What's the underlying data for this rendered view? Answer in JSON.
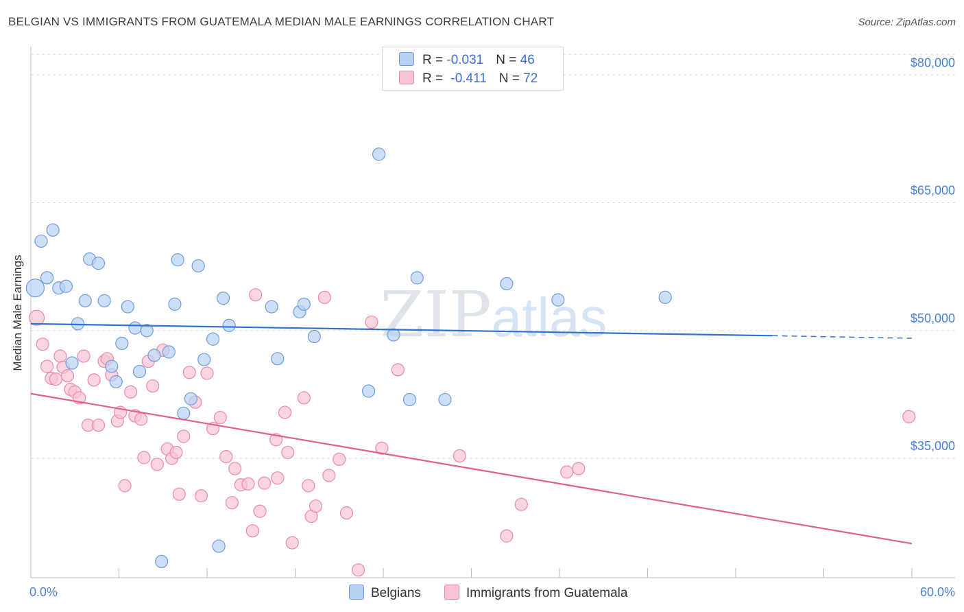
{
  "title": "BELGIAN VS IMMIGRANTS FROM GUATEMALA MEDIAN MALE EARNINGS CORRELATION CHART",
  "source": "Source: ZipAtlas.com",
  "watermark": "ZIPatlas",
  "legend": {
    "rows": [
      {
        "r_label": "R = ",
        "r_value": "-0.031",
        "n_label": "N = ",
        "n_value": "46"
      },
      {
        "r_label": "R = ",
        "r_value": "-0.411",
        "n_label": "N = ",
        "n_value": "72"
      }
    ]
  },
  "bottom_legend": [
    "Belgians",
    "Immigrants from Guatemala"
  ],
  "colors": {
    "blue_fill": "#b8d1f3",
    "blue_stroke": "#6f9bdc",
    "blue_line": "#2f72d0",
    "pink_fill": "#f7c3d3",
    "pink_stroke": "#e88aa8",
    "pink_line": "#e0608d",
    "tick_text": "#4a7fd4"
  },
  "chart_data": {
    "type": "scatter",
    "title": "BELGIAN VS IMMIGRANTS FROM GUATEMALA MEDIAN MALE EARNINGS CORRELATION CHART",
    "xlabel": "",
    "ylabel": "Median Male Earnings",
    "xlim": [
      0,
      60
    ],
    "ylim": [
      21000,
      83000
    ],
    "x_tick_labels": [
      "0.0%",
      "60.0%"
    ],
    "y_ticks": [
      35000,
      50000,
      65000,
      80000
    ],
    "y_tick_labels": [
      "$35,000",
      "$50,000",
      "$65,000",
      "$80,000"
    ],
    "grid": true,
    "legend_position": "top-center",
    "series": [
      {
        "name": "Belgians",
        "R": -0.031,
        "N": 46,
        "trend": {
          "x": [
            0,
            50.5
          ],
          "y": [
            50800,
            49400
          ],
          "dashed_to": [
            60,
            49100
          ]
        },
        "points": [
          [
            0.3,
            55000
          ],
          [
            0.7,
            60500
          ],
          [
            1.1,
            56200
          ],
          [
            1.5,
            61800
          ],
          [
            1.9,
            55000
          ],
          [
            2.4,
            55200
          ],
          [
            2.8,
            46200
          ],
          [
            3.2,
            50800
          ],
          [
            3.7,
            53500
          ],
          [
            4.0,
            58400
          ],
          [
            4.6,
            57900
          ],
          [
            5.0,
            53500
          ],
          [
            5.5,
            45800
          ],
          [
            5.8,
            44000
          ],
          [
            6.2,
            48500
          ],
          [
            6.6,
            52800
          ],
          [
            7.1,
            50300
          ],
          [
            7.4,
            45200
          ],
          [
            7.9,
            50000
          ],
          [
            8.4,
            47100
          ],
          [
            8.9,
            22900
          ],
          [
            9.4,
            47500
          ],
          [
            9.8,
            53100
          ],
          [
            10.0,
            58300
          ],
          [
            10.4,
            40300
          ],
          [
            10.9,
            42000
          ],
          [
            11.4,
            57600
          ],
          [
            11.8,
            46600
          ],
          [
            12.4,
            49000
          ],
          [
            12.8,
            24700
          ],
          [
            13.1,
            53800
          ],
          [
            13.5,
            50600
          ],
          [
            16.4,
            52800
          ],
          [
            16.8,
            46700
          ],
          [
            18.3,
            52200
          ],
          [
            18.6,
            53100
          ],
          [
            19.3,
            49300
          ],
          [
            23.0,
            42900
          ],
          [
            23.7,
            70700
          ],
          [
            24.7,
            49500
          ],
          [
            25.8,
            41900
          ],
          [
            26.3,
            56200
          ],
          [
            28.2,
            41900
          ],
          [
            32.4,
            55500
          ],
          [
            35.9,
            53600
          ],
          [
            43.2,
            53900
          ]
        ]
      },
      {
        "name": "Immigrants from Guatemala",
        "R": -0.411,
        "N": 72,
        "trend": {
          "x": [
            0,
            60
          ],
          "y": [
            42600,
            25000
          ]
        },
        "points": [
          [
            0.4,
            51500
          ],
          [
            0.8,
            48400
          ],
          [
            1.1,
            45800
          ],
          [
            1.4,
            44400
          ],
          [
            1.7,
            44300
          ],
          [
            2.0,
            47000
          ],
          [
            2.2,
            45700
          ],
          [
            2.5,
            44700
          ],
          [
            2.7,
            43100
          ],
          [
            3.0,
            42800
          ],
          [
            3.3,
            42100
          ],
          [
            3.6,
            47000
          ],
          [
            3.9,
            38900
          ],
          [
            4.3,
            44200
          ],
          [
            4.6,
            38900
          ],
          [
            5.0,
            46400
          ],
          [
            5.2,
            46700
          ],
          [
            5.5,
            44800
          ],
          [
            5.9,
            39400
          ],
          [
            6.1,
            40400
          ],
          [
            6.4,
            31800
          ],
          [
            6.8,
            42800
          ],
          [
            7.1,
            40000
          ],
          [
            7.5,
            39600
          ],
          [
            7.7,
            35100
          ],
          [
            8.0,
            46400
          ],
          [
            8.3,
            43500
          ],
          [
            8.6,
            34300
          ],
          [
            9.0,
            47700
          ],
          [
            9.3,
            36100
          ],
          [
            9.6,
            35000
          ],
          [
            9.9,
            35700
          ],
          [
            10.1,
            30800
          ],
          [
            10.4,
            37600
          ],
          [
            10.8,
            45100
          ],
          [
            11.2,
            41600
          ],
          [
            11.6,
            30600
          ],
          [
            12.0,
            45000
          ],
          [
            12.4,
            38500
          ],
          [
            12.9,
            39800
          ],
          [
            13.3,
            35200
          ],
          [
            13.7,
            29800
          ],
          [
            13.9,
            33800
          ],
          [
            14.3,
            31900
          ],
          [
            14.8,
            32000
          ],
          [
            15.1,
            26500
          ],
          [
            15.3,
            54200
          ],
          [
            15.6,
            28800
          ],
          [
            15.9,
            32100
          ],
          [
            16.7,
            37200
          ],
          [
            16.8,
            32700
          ],
          [
            17.3,
            40400
          ],
          [
            17.5,
            35700
          ],
          [
            17.8,
            25100
          ],
          [
            18.6,
            42100
          ],
          [
            18.9,
            31800
          ],
          [
            19.1,
            28200
          ],
          [
            19.4,
            29400
          ],
          [
            20.0,
            53900
          ],
          [
            20.3,
            33000
          ],
          [
            21.0,
            34900
          ],
          [
            21.5,
            28600
          ],
          [
            22.3,
            21900
          ],
          [
            23.2,
            51000
          ],
          [
            23.9,
            36200
          ],
          [
            25.0,
            45400
          ],
          [
            29.2,
            35300
          ],
          [
            32.4,
            25900
          ],
          [
            33.4,
            29600
          ],
          [
            36.5,
            33400
          ],
          [
            37.3,
            33800
          ],
          [
            59.8,
            39900
          ]
        ]
      }
    ]
  }
}
